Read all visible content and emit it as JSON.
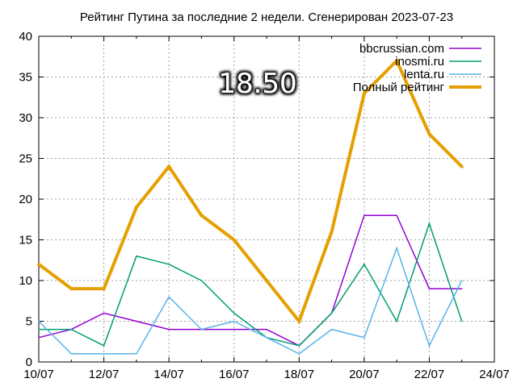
{
  "chart_data": {
    "type": "line",
    "title": "Рейтинг Путина за последние 2 недели. Сгенерирован 2023-07-23",
    "xlabel": "",
    "ylabel": "",
    "x_ticks": [
      "10/07",
      "12/07",
      "14/07",
      "16/07",
      "18/07",
      "20/07",
      "22/07",
      "24/07"
    ],
    "y_ticks": [
      "0",
      "5",
      "10",
      "15",
      "20",
      "25",
      "30",
      "35",
      "40"
    ],
    "xlim": [
      "10/07",
      "24/07"
    ],
    "ylim": [
      0,
      40
    ],
    "grid": true,
    "legend_position": "top-right",
    "x": [
      "10/07",
      "11/07",
      "12/07",
      "13/07",
      "14/07",
      "15/07",
      "16/07",
      "17/07",
      "18/07",
      "19/07",
      "20/07",
      "21/07",
      "22/07",
      "23/07"
    ],
    "series": [
      {
        "name": "bbcrussian.com",
        "color": "#9400d3",
        "width": 1.5,
        "values": [
          3,
          4,
          6,
          5,
          4,
          4,
          4,
          4,
          2,
          6,
          18,
          18,
          9,
          9
        ]
      },
      {
        "name": "inosmi.ru",
        "color": "#009e73",
        "width": 1.5,
        "values": [
          4,
          4,
          2,
          13,
          12,
          10,
          6,
          3,
          2,
          6,
          12,
          5,
          17,
          5
        ]
      },
      {
        "name": "lenta.ru",
        "color": "#56b4e9",
        "width": 1.5,
        "values": [
          5,
          1,
          1,
          1,
          8,
          4,
          5,
          3,
          1,
          4,
          3,
          14,
          2,
          10
        ]
      },
      {
        "name": "Полный рейтинг",
        "color": "#e69f00",
        "width": 4,
        "values": [
          12,
          9,
          9,
          19,
          24,
          18,
          15,
          10,
          5,
          16,
          33,
          37,
          28,
          24
        ]
      }
    ],
    "annotations": [
      "18.50"
    ]
  }
}
